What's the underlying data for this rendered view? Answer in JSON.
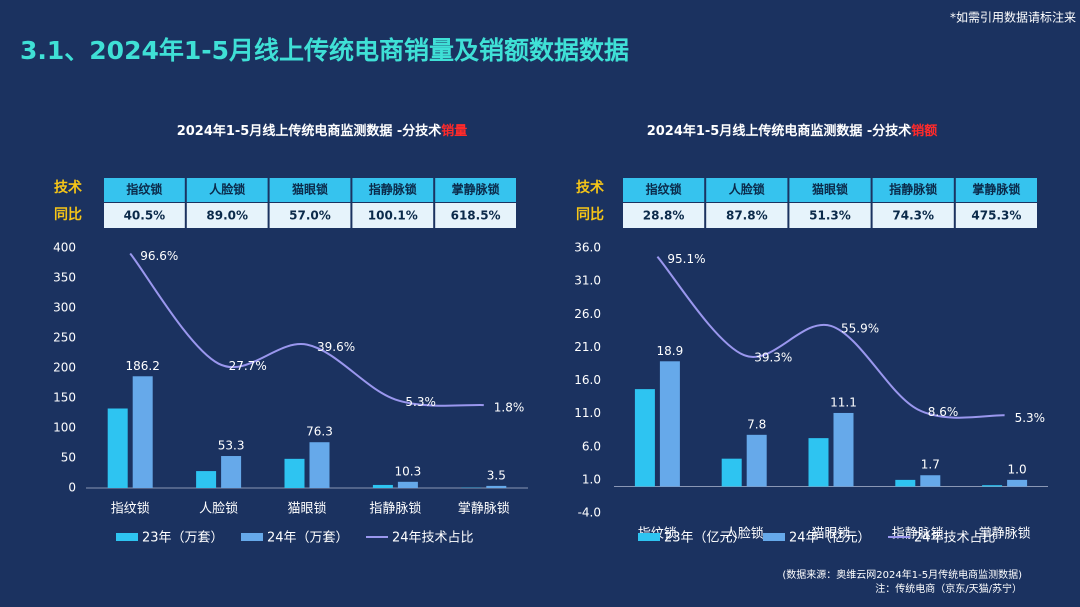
{
  "header": {
    "title": "3.1、2024年1-5月线上传统电商销量及销额数据数据",
    "note": "*如需引用数据请标注来"
  },
  "chart_data": [
    {
      "type": "bar",
      "title": "2024年1-5月线上传统电商监测数据 -分技术",
      "title_highlight": "销量",
      "table": {
        "row_labels": [
          "技术",
          "同比"
        ],
        "values": [
          "40.5%",
          "89.0%",
          "57.0%",
          "100.1%",
          "618.5%"
        ]
      },
      "categories": [
        "指纹锁",
        "人脸锁",
        "猫眼锁",
        "指静脉锁",
        "掌静脉锁"
      ],
      "series": [
        {
          "name": "23年（万套）",
          "type": "bar",
          "color": "#2ec4f1",
          "values": [
            132.5,
            28.2,
            48.6,
            5.1,
            0.5
          ]
        },
        {
          "name": "24年（万套）",
          "type": "bar",
          "color": "#66a9ea",
          "values": [
            186.2,
            53.3,
            76.3,
            10.3,
            3.5
          ],
          "labeled": true
        },
        {
          "name": "24年技术占比",
          "type": "line",
          "axis": "y2",
          "color": "#9a97ee",
          "values": [
            96.6,
            27.7,
            39.6,
            5.3,
            1.8
          ],
          "value_labels": [
            "96.6%",
            "27.7%",
            "39.6%",
            "5.3%",
            "1.8%"
          ]
        }
      ],
      "ylim": [
        0,
        400
      ],
      "yticks": [
        0,
        50,
        100,
        150,
        200,
        250,
        300,
        350,
        400
      ],
      "y2lim": [
        -50,
        100
      ]
    },
    {
      "type": "bar",
      "title": "2024年1-5月线上传统电商监测数据 -分技术",
      "title_highlight": "销额",
      "table": {
        "row_labels": [
          "技术",
          "同比"
        ],
        "values": [
          "28.8%",
          "87.8%",
          "51.3%",
          "74.3%",
          "475.3%"
        ]
      },
      "categories": [
        "指纹锁",
        "人脸锁",
        "猫眼锁",
        "指静脉锁",
        "掌静脉锁"
      ],
      "series": [
        {
          "name": "23年（亿元）",
          "type": "bar",
          "color": "#2ec4f1",
          "values": [
            14.7,
            4.2,
            7.3,
            1.0,
            0.2
          ]
        },
        {
          "name": "24年（亿元）",
          "type": "bar",
          "color": "#66a9ea",
          "values": [
            18.9,
            7.8,
            11.1,
            1.7,
            1.0
          ],
          "value_labels": [
            "18.9",
            "7.8",
            "11.1",
            "1.7",
            "1.0"
          ],
          "labeled": true
        },
        {
          "name": "24年技术占比",
          "type": "line",
          "axis": "y2",
          "color": "#9a97ee",
          "values": [
            95.1,
            39.3,
            55.9,
            8.6,
            5.3
          ],
          "value_labels": [
            "95.1%",
            "39.3%",
            "55.9%",
            "8.6%",
            "5.3%"
          ]
        }
      ],
      "ylim": [
        -4,
        36
      ],
      "yticks": [
        {
          "value": -4,
          "label": "-4.0"
        },
        {
          "value": 1,
          "label": "1.0"
        },
        {
          "value": 6,
          "label": "6.0"
        },
        {
          "value": 11,
          "label": "11.0"
        },
        {
          "value": 16,
          "label": "16.0"
        },
        {
          "value": 21,
          "label": "21.0"
        },
        {
          "value": 26,
          "label": "26.0"
        },
        {
          "value": 31,
          "label": "31.0"
        },
        {
          "value": 36,
          "label": "36.0"
        }
      ],
      "y2lim": [
        -50,
        100
      ]
    }
  ],
  "source": {
    "line1": "(数据来源：奥维云网2024年1-5月传统电商监测数据)",
    "line2": "注：传统电商（京东/天猫/苏宁）"
  }
}
